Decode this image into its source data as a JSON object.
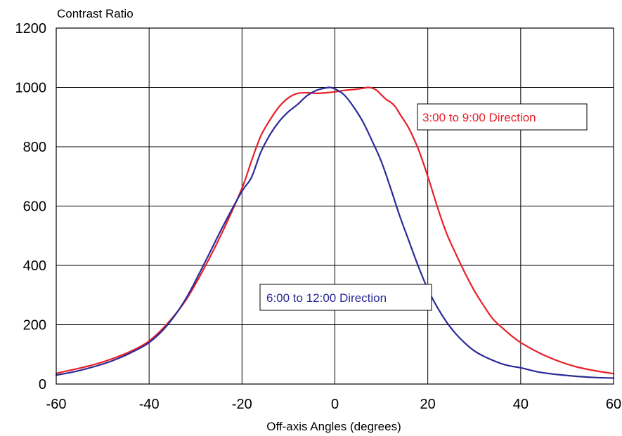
{
  "chart_data": {
    "type": "line",
    "title": "",
    "xlabel": "Off-axis Angles (degrees)",
    "ylabel": "Contrast Ratio",
    "xlim": [
      -60,
      60
    ],
    "ylim": [
      0,
      1200
    ],
    "xticks": [
      -60,
      -40,
      -20,
      0,
      20,
      40,
      60
    ],
    "yticks": [
      0,
      200,
      400,
      600,
      800,
      1000,
      1200
    ],
    "grid": true,
    "series": [
      {
        "name": "3:00 to 9:00 Direction",
        "color": "#e8202a",
        "x": [
          -60,
          -56,
          -52,
          -48,
          -44,
          -40,
          -36,
          -32,
          -28,
          -24,
          -20,
          -18,
          -16,
          -14,
          -12,
          -10,
          -8,
          -6,
          -4,
          -2,
          0,
          2,
          4,
          6,
          7,
          8,
          9,
          10,
          11,
          12,
          13,
          14,
          16,
          18,
          20,
          22,
          24,
          26,
          28,
          30,
          32,
          34,
          36,
          38,
          40,
          44,
          48,
          52,
          56,
          60
        ],
        "y": [
          36,
          50,
          65,
          85,
          110,
          145,
          205,
          285,
          395,
          520,
          660,
          750,
          835,
          890,
          935,
          965,
          980,
          982,
          980,
          982,
          985,
          990,
          993,
          997,
          1000,
          998,
          990,
          975,
          960,
          950,
          935,
          910,
          860,
          790,
          700,
          600,
          510,
          440,
          375,
          315,
          265,
          220,
          190,
          163,
          140,
          105,
          78,
          58,
          45,
          35
        ]
      },
      {
        "name": "6:00 to 12:00 Direction",
        "color": "#2b2a96",
        "x": [
          -60,
          -56,
          -52,
          -48,
          -44,
          -40,
          -36,
          -32,
          -28,
          -24,
          -20,
          -18,
          -16,
          -14,
          -12,
          -10,
          -8,
          -6,
          -4,
          -2,
          -1,
          0,
          2,
          4,
          6,
          8,
          10,
          12,
          14,
          16,
          18,
          20,
          22,
          24,
          26,
          28,
          30,
          32,
          34,
          36,
          38,
          40,
          44,
          48,
          52,
          56,
          60
        ],
        "y": [
          30,
          42,
          58,
          78,
          105,
          140,
          200,
          290,
          410,
          535,
          650,
          695,
          780,
          840,
          885,
          918,
          943,
          972,
          990,
          998,
          1000,
          995,
          975,
          935,
          885,
          820,
          750,
          660,
          565,
          480,
          395,
          320,
          260,
          210,
          170,
          138,
          112,
          94,
          80,
          68,
          60,
          55,
          40,
          32,
          26,
          22,
          20
        ]
      }
    ],
    "legend_boxes": [
      {
        "label": "3:00 to 9:00 Direction",
        "placement": "upper-right",
        "color": "#e8202a"
      },
      {
        "label": "6:00 to 12:00 Direction",
        "placement": "center-lower",
        "color": "#2b2a96"
      }
    ]
  }
}
